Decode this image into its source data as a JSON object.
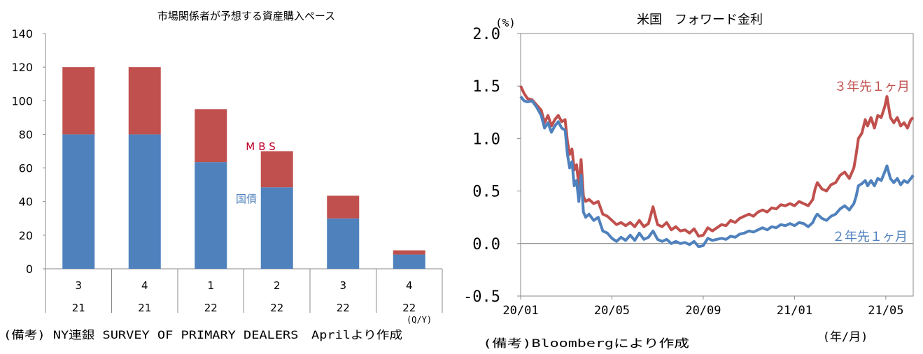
{
  "chart_data": [
    {
      "type": "bar",
      "stacked": true,
      "title": "市場関係者が予想する資産購入ペース",
      "categories": [
        {
          "quarter": "3",
          "year": "21"
        },
        {
          "quarter": "4",
          "year": "21"
        },
        {
          "quarter": "1",
          "year": "22"
        },
        {
          "quarter": "2",
          "year": "22"
        },
        {
          "quarter": "3",
          "year": "22"
        },
        {
          "quarter": "4",
          "year": "22"
        }
      ],
      "series": [
        {
          "name": "国債",
          "color": "#4f81bd",
          "values": [
            80,
            80,
            63.5,
            48.5,
            30,
            8.5
          ]
        },
        {
          "name": "MBS",
          "color": "#c0504d",
          "values": [
            40,
            40,
            31.5,
            21.5,
            13.5,
            2.5
          ]
        }
      ],
      "ylim": [
        0,
        140
      ],
      "yticks": [
        0,
        20,
        40,
        60,
        80,
        100,
        120,
        140
      ],
      "xlabel_unit": "(Q/Y)",
      "source": "(備考) NY連銀 SURVEY OF PRIMARY DEALERS　Aprilより作成"
    },
    {
      "type": "line",
      "title": "米国　フォワード金利",
      "ylabel": "(%)",
      "ylim": [
        -0.5,
        2.0
      ],
      "yticks": [
        "2.0",
        "1.5",
        "1.0",
        "0.5",
        "0.0",
        "-0.5"
      ],
      "x_range_months": [
        0,
        17.2
      ],
      "xticks": [
        {
          "label": "20/01",
          "month": 0
        },
        {
          "label": "20/05",
          "month": 4
        },
        {
          "label": "20/09",
          "month": 8
        },
        {
          "label": "21/01",
          "month": 12
        },
        {
          "label": "21/05",
          "month": 16
        }
      ],
      "xlabel_unit": "(年/月)",
      "series": [
        {
          "name": "３年先１ヶ月",
          "color": "#c0504d",
          "points": [
            [
              0.0,
              1.5
            ],
            [
              0.15,
              1.43
            ],
            [
              0.3,
              1.38
            ],
            [
              0.5,
              1.37
            ],
            [
              0.7,
              1.32
            ],
            [
              0.9,
              1.27
            ],
            [
              1.05,
              1.15
            ],
            [
              1.2,
              1.22
            ],
            [
              1.35,
              1.12
            ],
            [
              1.5,
              1.18
            ],
            [
              1.65,
              1.22
            ],
            [
              1.8,
              1.16
            ],
            [
              1.95,
              1.18
            ],
            [
              2.05,
              0.97
            ],
            [
              2.15,
              0.85
            ],
            [
              2.25,
              0.9
            ],
            [
              2.35,
              0.7
            ],
            [
              2.45,
              0.75
            ],
            [
              2.55,
              0.55
            ],
            [
              2.65,
              0.8
            ],
            [
              2.75,
              0.45
            ],
            [
              2.85,
              0.4
            ],
            [
              3.0,
              0.42
            ],
            [
              3.2,
              0.38
            ],
            [
              3.4,
              0.4
            ],
            [
              3.6,
              0.28
            ],
            [
              3.8,
              0.26
            ],
            [
              4.0,
              0.22
            ],
            [
              4.2,
              0.18
            ],
            [
              4.4,
              0.2
            ],
            [
              4.6,
              0.17
            ],
            [
              4.8,
              0.2
            ],
            [
              5.0,
              0.16
            ],
            [
              5.2,
              0.22
            ],
            [
              5.4,
              0.16
            ],
            [
              5.6,
              0.19
            ],
            [
              5.8,
              0.35
            ],
            [
              6.0,
              0.18
            ],
            [
              6.2,
              0.16
            ],
            [
              6.4,
              0.2
            ],
            [
              6.6,
              0.13
            ],
            [
              6.8,
              0.16
            ],
            [
              7.0,
              0.12
            ],
            [
              7.2,
              0.13
            ],
            [
              7.4,
              0.1
            ],
            [
              7.6,
              0.14
            ],
            [
              7.8,
              0.07
            ],
            [
              8.0,
              0.08
            ],
            [
              8.2,
              0.15
            ],
            [
              8.4,
              0.12
            ],
            [
              8.6,
              0.15
            ],
            [
              8.8,
              0.18
            ],
            [
              9.0,
              0.17
            ],
            [
              9.2,
              0.22
            ],
            [
              9.4,
              0.2
            ],
            [
              9.6,
              0.24
            ],
            [
              9.8,
              0.26
            ],
            [
              10.0,
              0.28
            ],
            [
              10.2,
              0.26
            ],
            [
              10.4,
              0.3
            ],
            [
              10.6,
              0.32
            ],
            [
              10.8,
              0.3
            ],
            [
              11.0,
              0.34
            ],
            [
              11.2,
              0.33
            ],
            [
              11.4,
              0.37
            ],
            [
              11.6,
              0.36
            ],
            [
              11.8,
              0.38
            ],
            [
              12.0,
              0.36
            ],
            [
              12.2,
              0.4
            ],
            [
              12.4,
              0.38
            ],
            [
              12.6,
              0.36
            ],
            [
              12.8,
              0.42
            ],
            [
              12.9,
              0.52
            ],
            [
              13.0,
              0.58
            ],
            [
              13.2,
              0.52
            ],
            [
              13.4,
              0.5
            ],
            [
              13.6,
              0.56
            ],
            [
              13.8,
              0.58
            ],
            [
              14.0,
              0.65
            ],
            [
              14.2,
              0.68
            ],
            [
              14.4,
              0.62
            ],
            [
              14.6,
              0.72
            ],
            [
              14.7,
              0.85
            ],
            [
              14.8,
              1.0
            ],
            [
              14.95,
              1.05
            ],
            [
              15.1,
              1.18
            ],
            [
              15.2,
              1.12
            ],
            [
              15.35,
              1.2
            ],
            [
              15.5,
              1.1
            ],
            [
              15.65,
              1.22
            ],
            [
              15.8,
              1.2
            ],
            [
              15.95,
              1.3
            ],
            [
              16.05,
              1.4
            ],
            [
              16.2,
              1.2
            ],
            [
              16.35,
              1.15
            ],
            [
              16.5,
              1.2
            ],
            [
              16.65,
              1.12
            ],
            [
              16.8,
              1.15
            ],
            [
              16.95,
              1.1
            ],
            [
              17.1,
              1.18
            ],
            [
              17.2,
              1.2
            ]
          ]
        },
        {
          "name": "２年先１ヶ月",
          "color": "#4f81bd",
          "points": [
            [
              0.0,
              1.4
            ],
            [
              0.15,
              1.36
            ],
            [
              0.3,
              1.35
            ],
            [
              0.5,
              1.36
            ],
            [
              0.7,
              1.3
            ],
            [
              0.9,
              1.22
            ],
            [
              1.05,
              1.1
            ],
            [
              1.2,
              1.15
            ],
            [
              1.35,
              1.06
            ],
            [
              1.5,
              1.12
            ],
            [
              1.65,
              1.16
            ],
            [
              1.8,
              1.1
            ],
            [
              1.95,
              1.08
            ],
            [
              2.05,
              0.85
            ],
            [
              2.15,
              0.72
            ],
            [
              2.25,
              0.78
            ],
            [
              2.35,
              0.55
            ],
            [
              2.45,
              0.6
            ],
            [
              2.55,
              0.4
            ],
            [
              2.65,
              0.65
            ],
            [
              2.75,
              0.3
            ],
            [
              2.85,
              0.25
            ],
            [
              3.0,
              0.28
            ],
            [
              3.2,
              0.22
            ],
            [
              3.4,
              0.25
            ],
            [
              3.6,
              0.12
            ],
            [
              3.8,
              0.1
            ],
            [
              4.0,
              0.05
            ],
            [
              4.2,
              0.02
            ],
            [
              4.4,
              0.06
            ],
            [
              4.6,
              0.03
            ],
            [
              4.8,
              0.08
            ],
            [
              5.0,
              0.03
            ],
            [
              5.2,
              0.1
            ],
            [
              5.4,
              0.04
            ],
            [
              5.6,
              0.06
            ],
            [
              5.8,
              0.12
            ],
            [
              6.0,
              0.04
            ],
            [
              6.2,
              0.02
            ],
            [
              6.4,
              0.04
            ],
            [
              6.6,
              0.0
            ],
            [
              6.8,
              0.02
            ],
            [
              7.0,
              0.0
            ],
            [
              7.2,
              0.01
            ],
            [
              7.4,
              -0.01
            ],
            [
              7.6,
              0.02
            ],
            [
              7.8,
              -0.03
            ],
            [
              8.0,
              -0.02
            ],
            [
              8.2,
              0.05
            ],
            [
              8.4,
              0.03
            ],
            [
              8.6,
              0.04
            ],
            [
              8.8,
              0.05
            ],
            [
              9.0,
              0.04
            ],
            [
              9.2,
              0.07
            ],
            [
              9.4,
              0.06
            ],
            [
              9.6,
              0.09
            ],
            [
              9.8,
              0.1
            ],
            [
              10.0,
              0.12
            ],
            [
              10.2,
              0.11
            ],
            [
              10.4,
              0.13
            ],
            [
              10.6,
              0.15
            ],
            [
              10.8,
              0.13
            ],
            [
              11.0,
              0.16
            ],
            [
              11.2,
              0.15
            ],
            [
              11.4,
              0.18
            ],
            [
              11.6,
              0.17
            ],
            [
              11.8,
              0.19
            ],
            [
              12.0,
              0.17
            ],
            [
              12.2,
              0.2
            ],
            [
              12.4,
              0.19
            ],
            [
              12.6,
              0.16
            ],
            [
              12.8,
              0.2
            ],
            [
              12.9,
              0.25
            ],
            [
              13.0,
              0.28
            ],
            [
              13.2,
              0.24
            ],
            [
              13.4,
              0.22
            ],
            [
              13.6,
              0.26
            ],
            [
              13.8,
              0.28
            ],
            [
              14.0,
              0.33
            ],
            [
              14.2,
              0.36
            ],
            [
              14.4,
              0.32
            ],
            [
              14.6,
              0.38
            ],
            [
              14.7,
              0.45
            ],
            [
              14.8,
              0.55
            ],
            [
              14.95,
              0.57
            ],
            [
              15.1,
              0.6
            ],
            [
              15.2,
              0.55
            ],
            [
              15.35,
              0.6
            ],
            [
              15.5,
              0.55
            ],
            [
              15.65,
              0.62
            ],
            [
              15.8,
              0.6
            ],
            [
              15.95,
              0.68
            ],
            [
              16.05,
              0.74
            ],
            [
              16.2,
              0.62
            ],
            [
              16.35,
              0.58
            ],
            [
              16.5,
              0.62
            ],
            [
              16.65,
              0.56
            ],
            [
              16.8,
              0.6
            ],
            [
              16.95,
              0.58
            ],
            [
              17.1,
              0.62
            ],
            [
              17.2,
              0.65
            ]
          ]
        }
      ],
      "source": "(備考)Bloombergにより作成"
    }
  ]
}
